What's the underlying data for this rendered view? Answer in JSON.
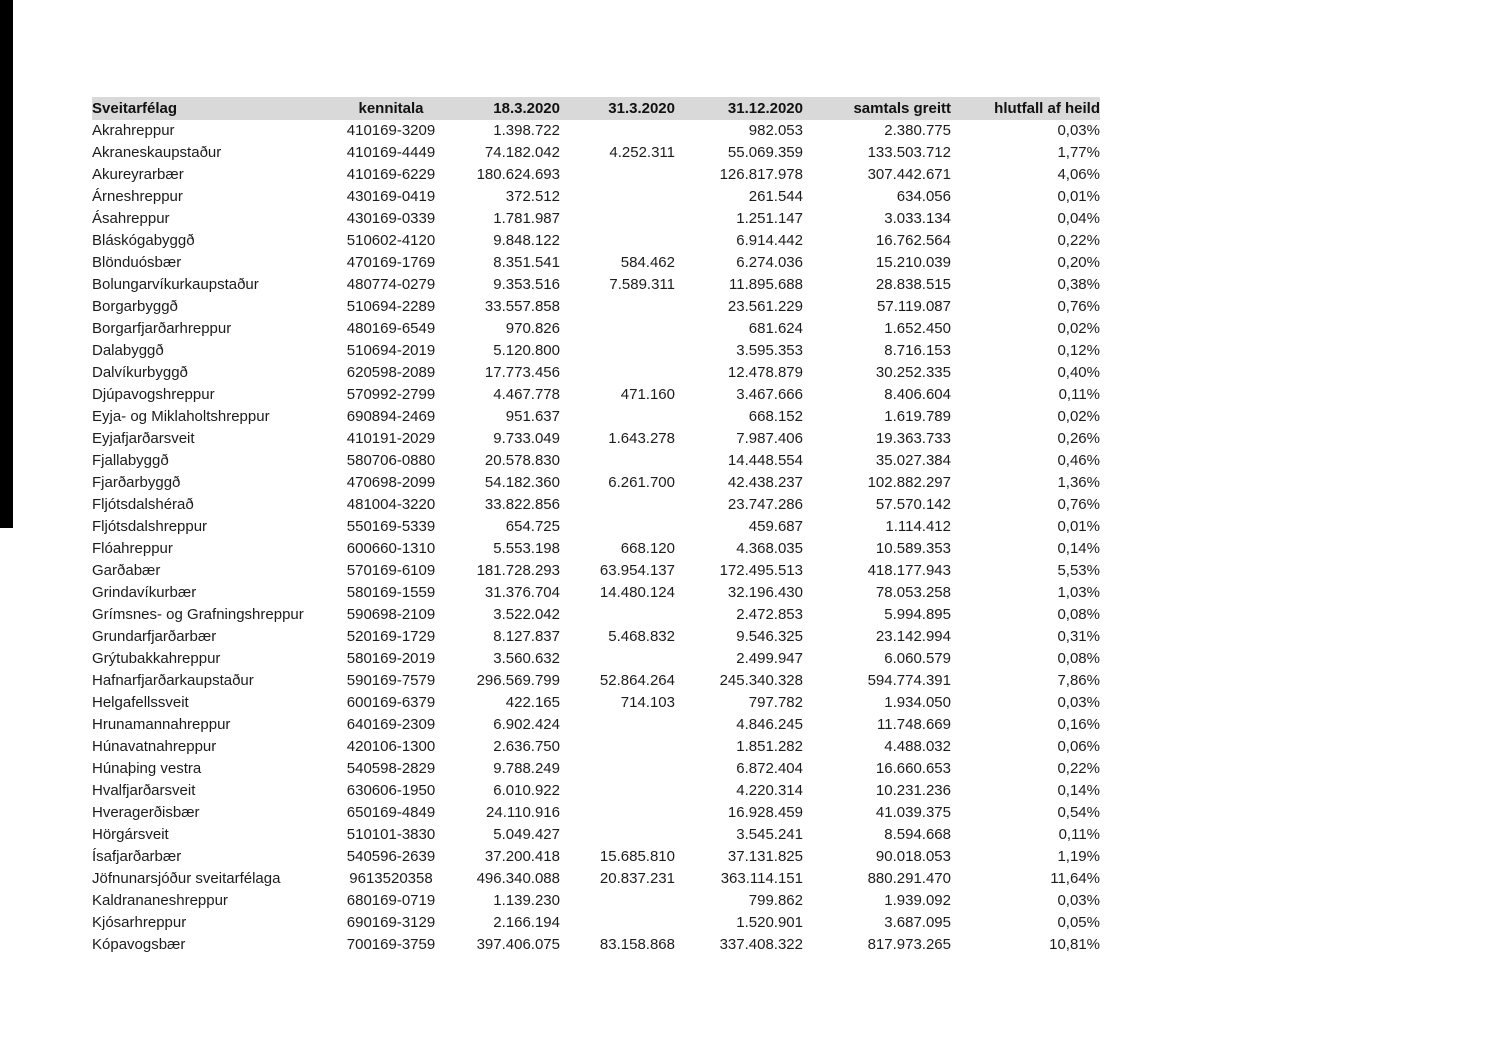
{
  "colors": {
    "header_bg": "#d9d9d9",
    "text": "#1c1c1c",
    "scan_bar": "#000000",
    "page_bg": "#ffffff"
  },
  "table": {
    "columns": [
      "Sveitarfélag",
      "kennitala",
      "18.3.2020",
      "31.3.2020",
      "31.12.2020",
      "samtals greitt",
      "hlutfall af heild"
    ],
    "rows": [
      [
        "Akrahreppur",
        "410169-3209",
        "1.398.722",
        "",
        "982.053",
        "2.380.775",
        "0,03%"
      ],
      [
        "Akraneskaupstaður",
        "410169-4449",
        "74.182.042",
        "4.252.311",
        "55.069.359",
        "133.503.712",
        "1,77%"
      ],
      [
        "Akureyrarbær",
        "410169-6229",
        "180.624.693",
        "",
        "126.817.978",
        "307.442.671",
        "4,06%"
      ],
      [
        "Árneshreppur",
        "430169-0419",
        "372.512",
        "",
        "261.544",
        "634.056",
        "0,01%"
      ],
      [
        "Ásahreppur",
        "430169-0339",
        "1.781.987",
        "",
        "1.251.147",
        "3.033.134",
        "0,04%"
      ],
      [
        "Bláskógabyggð",
        "510602-4120",
        "9.848.122",
        "",
        "6.914.442",
        "16.762.564",
        "0,22%"
      ],
      [
        "Blönduósbær",
        "470169-1769",
        "8.351.541",
        "584.462",
        "6.274.036",
        "15.210.039",
        "0,20%"
      ],
      [
        "Bolungarvíkurkaupstaður",
        "480774-0279",
        "9.353.516",
        "7.589.311",
        "11.895.688",
        "28.838.515",
        "0,38%"
      ],
      [
        "Borgarbyggð",
        "510694-2289",
        "33.557.858",
        "",
        "23.561.229",
        "57.119.087",
        "0,76%"
      ],
      [
        "Borgarfjarðarhreppur",
        "480169-6549",
        "970.826",
        "",
        "681.624",
        "1.652.450",
        "0,02%"
      ],
      [
        "Dalabyggð",
        "510694-2019",
        "5.120.800",
        "",
        "3.595.353",
        "8.716.153",
        "0,12%"
      ],
      [
        "Dalvíkurbyggð",
        "620598-2089",
        "17.773.456",
        "",
        "12.478.879",
        "30.252.335",
        "0,40%"
      ],
      [
        "Djúpavogshreppur",
        "570992-2799",
        "4.467.778",
        "471.160",
        "3.467.666",
        "8.406.604",
        "0,11%"
      ],
      [
        "Eyja- og Miklaholtshreppur",
        "690894-2469",
        "951.637",
        "",
        "668.152",
        "1.619.789",
        "0,02%"
      ],
      [
        "Eyjafjarðarsveit",
        "410191-2029",
        "9.733.049",
        "1.643.278",
        "7.987.406",
        "19.363.733",
        "0,26%"
      ],
      [
        "Fjallabyggð",
        "580706-0880",
        "20.578.830",
        "",
        "14.448.554",
        "35.027.384",
        "0,46%"
      ],
      [
        "Fjarðarbyggð",
        "470698-2099",
        "54.182.360",
        "6.261.700",
        "42.438.237",
        "102.882.297",
        "1,36%"
      ],
      [
        "Fljótsdalshérað",
        "481004-3220",
        "33.822.856",
        "",
        "23.747.286",
        "57.570.142",
        "0,76%"
      ],
      [
        "Fljótsdalshreppur",
        "550169-5339",
        "654.725",
        "",
        "459.687",
        "1.114.412",
        "0,01%"
      ],
      [
        "Flóahreppur",
        "600660-1310",
        "5.553.198",
        "668.120",
        "4.368.035",
        "10.589.353",
        "0,14%"
      ],
      [
        "Garðabær",
        "570169-6109",
        "181.728.293",
        "63.954.137",
        "172.495.513",
        "418.177.943",
        "5,53%"
      ],
      [
        "Grindavíkurbær",
        "580169-1559",
        "31.376.704",
        "14.480.124",
        "32.196.430",
        "78.053.258",
        "1,03%"
      ],
      [
        "Grímsnes- og Grafningshreppur",
        "590698-2109",
        "3.522.042",
        "",
        "2.472.853",
        "5.994.895",
        "0,08%"
      ],
      [
        "Grundarfjarðarbær",
        "520169-1729",
        "8.127.837",
        "5.468.832",
        "9.546.325",
        "23.142.994",
        "0,31%"
      ],
      [
        "Grýtubakkahreppur",
        "580169-2019",
        "3.560.632",
        "",
        "2.499.947",
        "6.060.579",
        "0,08%"
      ],
      [
        "Hafnarfjarðarkaupstaður",
        "590169-7579",
        "296.569.799",
        "52.864.264",
        "245.340.328",
        "594.774.391",
        "7,86%"
      ],
      [
        "Helgafellssveit",
        "600169-6379",
        "422.165",
        "714.103",
        "797.782",
        "1.934.050",
        "0,03%"
      ],
      [
        "Hrunamannahreppur",
        "640169-2309",
        "6.902.424",
        "",
        "4.846.245",
        "11.748.669",
        "0,16%"
      ],
      [
        "Húnavatnahreppur",
        "420106-1300",
        "2.636.750",
        "",
        "1.851.282",
        "4.488.032",
        "0,06%"
      ],
      [
        "Húnaþing vestra",
        "540598-2829",
        "9.788.249",
        "",
        "6.872.404",
        "16.660.653",
        "0,22%"
      ],
      [
        "Hvalfjarðarsveit",
        "630606-1950",
        "6.010.922",
        "",
        "4.220.314",
        "10.231.236",
        "0,14%"
      ],
      [
        "Hveragerðisbær",
        "650169-4849",
        "24.110.916",
        "",
        "16.928.459",
        "41.039.375",
        "0,54%"
      ],
      [
        "Hörgársveit",
        "510101-3830",
        "5.049.427",
        "",
        "3.545.241",
        "8.594.668",
        "0,11%"
      ],
      [
        "Ísafjarðarbær",
        "540596-2639",
        "37.200.418",
        "15.685.810",
        "37.131.825",
        "90.018.053",
        "1,19%"
      ],
      [
        "Jöfnunarsjóður sveitarfélaga",
        "9613520358",
        "496.340.088",
        "20.837.231",
        "363.114.151",
        "880.291.470",
        "11,64%"
      ],
      [
        "Kaldrananeshreppur",
        "680169-0719",
        "1.139.230",
        "",
        "799.862",
        "1.939.092",
        "0,03%"
      ],
      [
        "Kjósarhreppur",
        "690169-3129",
        "2.166.194",
        "",
        "1.520.901",
        "3.687.095",
        "0,05%"
      ],
      [
        "Kópavogsbær",
        "700169-3759",
        "397.406.075",
        "83.158.868",
        "337.408.322",
        "817.973.265",
        "10,81%"
      ]
    ]
  }
}
